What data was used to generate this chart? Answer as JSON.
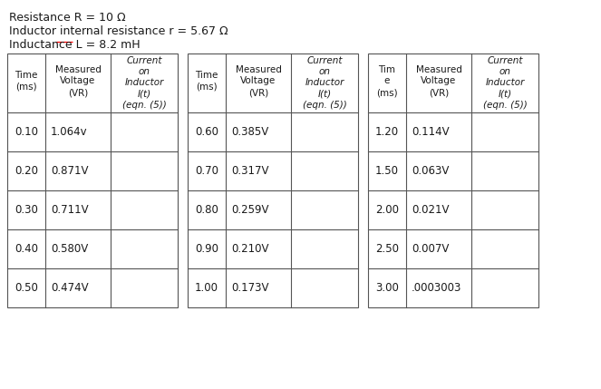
{
  "header_line1": "Resistance R = 10 Ω",
  "header_line2": "Inductor internal resistance r = 5.67 Ω",
  "header_line3": "Inductance L = 8.2 mH",
  "table1": {
    "time": [
      "0.10",
      "0.20",
      "0.30",
      "0.40",
      "0.50"
    ],
    "voltage": [
      "1.064v",
      "0.871V",
      "0.711V",
      "0.580V",
      "0.474V"
    ]
  },
  "table2": {
    "time": [
      "0.60",
      "0.70",
      "0.80",
      "0.90",
      "1.00"
    ],
    "voltage": [
      "0.385V",
      "0.317V",
      "0.259V",
      "0.210V",
      "0.173V"
    ]
  },
  "table3": {
    "time": [
      "1.20",
      "1.50",
      "2.00",
      "2.50",
      "3.00"
    ],
    "voltage": [
      "0.114V",
      "0.063V",
      "0.021V",
      "0.007V",
      ".0003003"
    ]
  },
  "bg_color": "#ffffff",
  "text_color": "#1a1a1a",
  "line_color": "#555555",
  "fs_header_text": 9.0,
  "fs_col_header": 7.5,
  "fs_data": 8.5
}
